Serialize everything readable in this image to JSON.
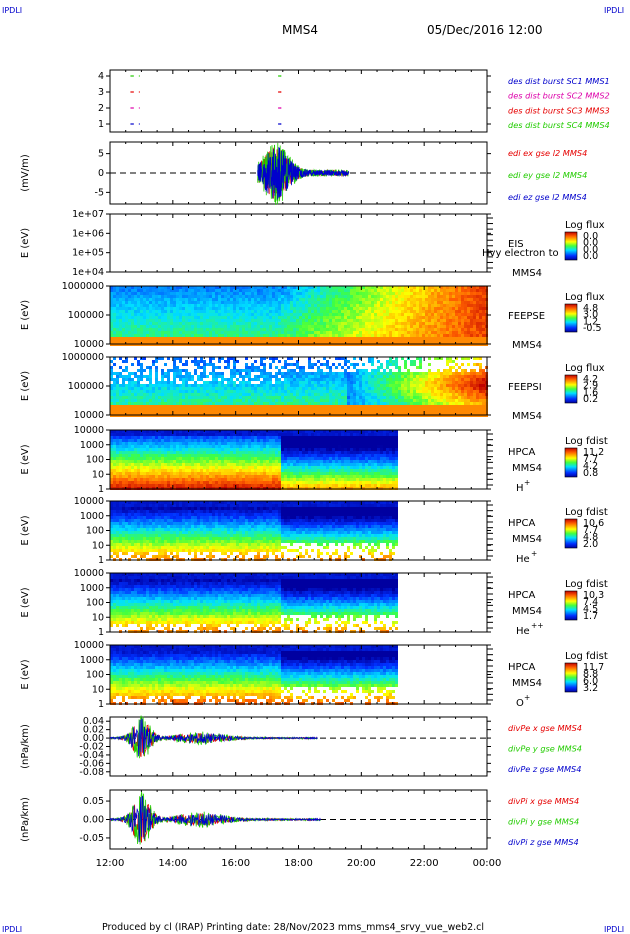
{
  "corner_left_top": "IPDLI",
  "corner_right_top": "IPDLI",
  "corner_left_bottom": "IPDLI",
  "corner_right_bottom": "IPDLI",
  "header": {
    "spacecraft": "MMS4",
    "datetime": "05/Dec/2016 12:00"
  },
  "footer": {
    "text": "Produced by cl (IRAP)   Printing date: 28/Nov/2023   mms_mms4_srvy_vue_web2.cl"
  },
  "colors": {
    "red": "#e60000",
    "green": "#22cc00",
    "blue": "#0000cc",
    "magenta": "#dd00aa",
    "orange": "#ff7f00"
  },
  "chart_data": {
    "type": "multi-panel time series",
    "x_ticks": [
      "12:00",
      "14:00",
      "16:00",
      "18:00",
      "20:00",
      "22:00",
      "00:00"
    ],
    "xlim_hours": [
      12,
      24
    ],
    "panels": [
      {
        "id": "burst",
        "type": "line",
        "yticks": [
          "4",
          "3",
          "2",
          "1"
        ],
        "legend": [
          {
            "text": "des dist burst SC1 MMS1",
            "color": "#0000cc"
          },
          {
            "text": "des dist burst SC2 MMS2",
            "color": "#dd00aa"
          },
          {
            "text": "des dist burst SC3 MMS3",
            "color": "#e60000"
          },
          {
            "text": "des dist burst SC4 MMS4",
            "color": "#22cc00"
          }
        ],
        "series": [
          {
            "level": 4,
            "color": "#22cc00",
            "intervals": [
              [
                12.65,
                12.95
              ],
              [
                17.35,
                17.45
              ]
            ]
          },
          {
            "level": 3,
            "color": "#e60000",
            "intervals": [
              [
                12.65,
                12.95
              ],
              [
                17.35,
                17.45
              ]
            ]
          },
          {
            "level": 2,
            "color": "#dd00aa",
            "intervals": [
              [
                12.65,
                12.95
              ],
              [
                17.35,
                17.45
              ]
            ]
          },
          {
            "level": 1,
            "color": "#0000cc",
            "intervals": [
              [
                12.65,
                12.95
              ],
              [
                17.35,
                17.45
              ]
            ]
          }
        ]
      },
      {
        "id": "edi",
        "type": "line",
        "ylabel": "(mV/m)",
        "yticks": [
          "5",
          "0",
          "-5"
        ],
        "ylim": [
          -8,
          8
        ],
        "legend": [
          {
            "text": "edi ex gse l2 MMS4",
            "color": "#e60000"
          },
          {
            "text": "edi ey gse l2 MMS4",
            "color": "#22cc00"
          },
          {
            "text": "edi ez gse l2 MMS4",
            "color": "#0000cc"
          }
        ]
      },
      {
        "id": "eis",
        "type": "heatmap",
        "ylabel": "E (eV)",
        "yticks": [
          "1e+07",
          "1e+06",
          "1e+05",
          "1e+04"
        ],
        "label": "EIS",
        "label2": "MMS4",
        "overlay": "Hvy electron to",
        "colorbar_title": "Log flux",
        "colorbar_ticks": [
          "0.0",
          "0.0",
          "0.0",
          "0.0"
        ]
      },
      {
        "id": "feepse",
        "type": "heatmap",
        "ylabel": "E (eV)",
        "yticks": [
          "1000000",
          "100000",
          "10000"
        ],
        "label": "FEEPSE",
        "label2": "MMS4",
        "colorbar_title": "Log flux",
        "colorbar_ticks": [
          "4.8",
          "3.0",
          "1.2",
          "-0.5"
        ]
      },
      {
        "id": "feepsi",
        "type": "heatmap",
        "ylabel": "E (eV)",
        "yticks": [
          "1000000",
          "100000",
          "10000"
        ],
        "label": "FEEPSI",
        "label2": "MMS4",
        "colorbar_title": "Log flux",
        "colorbar_ticks": [
          "4.2",
          "2.9",
          "1.6",
          "0.2"
        ]
      },
      {
        "id": "hpca_h",
        "type": "heatmap",
        "ylabel": "E (eV)",
        "yticks": [
          "10000",
          "1000",
          "100",
          "10",
          "1"
        ],
        "label": "HPCA",
        "label2": "MMS4",
        "species": "H",
        "species_sup": "+",
        "colorbar_title": "Log fdist",
        "colorbar_ticks": [
          "11.2",
          "7.7",
          "4.2",
          "0.8"
        ]
      },
      {
        "id": "hpca_he",
        "type": "heatmap",
        "ylabel": "E (eV)",
        "yticks": [
          "10000",
          "1000",
          "100",
          "10",
          "1"
        ],
        "label": "HPCA",
        "label2": "MMS4",
        "species": "He",
        "species_sup": "+",
        "colorbar_title": "Log fdist",
        "colorbar_ticks": [
          "10.6",
          "7.7",
          "4.8",
          "2.0"
        ]
      },
      {
        "id": "hpca_hepp",
        "type": "heatmap",
        "ylabel": "E (eV)",
        "yticks": [
          "10000",
          "1000",
          "100",
          "10",
          "1"
        ],
        "label": "HPCA",
        "label2": "MMS4",
        "species": "He",
        "species_sup": "++",
        "colorbar_title": "Log fdist",
        "colorbar_ticks": [
          "10.3",
          "7.4",
          "4.5",
          "1.7"
        ]
      },
      {
        "id": "hpca_o",
        "type": "heatmap",
        "ylabel": "E (eV)",
        "yticks": [
          "10000",
          "1000",
          "100",
          "10",
          "1"
        ],
        "label": "HPCA",
        "label2": "MMS4",
        "species": "O",
        "species_sup": "+",
        "colorbar_title": "Log fdist",
        "colorbar_ticks": [
          "11.7",
          "8.8",
          "6.0",
          "3.2"
        ]
      },
      {
        "id": "divpe",
        "type": "line",
        "ylabel": "(nPa/km)",
        "yticks": [
          "0.04",
          "0.02",
          "0.00",
          "-0.02",
          "-0.04",
          "-0.06",
          "-0.08"
        ],
        "ylim": [
          -0.09,
          0.05
        ],
        "legend": [
          {
            "text": "divPe x gse MMS4",
            "color": "#e60000"
          },
          {
            "text": "divPe y gse MMS4",
            "color": "#22cc00"
          },
          {
            "text": "divPe z gse MMS4",
            "color": "#0000cc"
          }
        ]
      },
      {
        "id": "divpi",
        "type": "line",
        "ylabel": "(nPa/km)",
        "yticks": [
          "0.05",
          "0.00",
          "-0.05"
        ],
        "ylim": [
          -0.08,
          0.08
        ],
        "legend": [
          {
            "text": "divPi x gse MMS4",
            "color": "#e60000"
          },
          {
            "text": "divPi y gse MMS4",
            "color": "#22cc00"
          },
          {
            "text": "divPi z gse MMS4",
            "color": "#0000cc"
          }
        ]
      }
    ]
  }
}
